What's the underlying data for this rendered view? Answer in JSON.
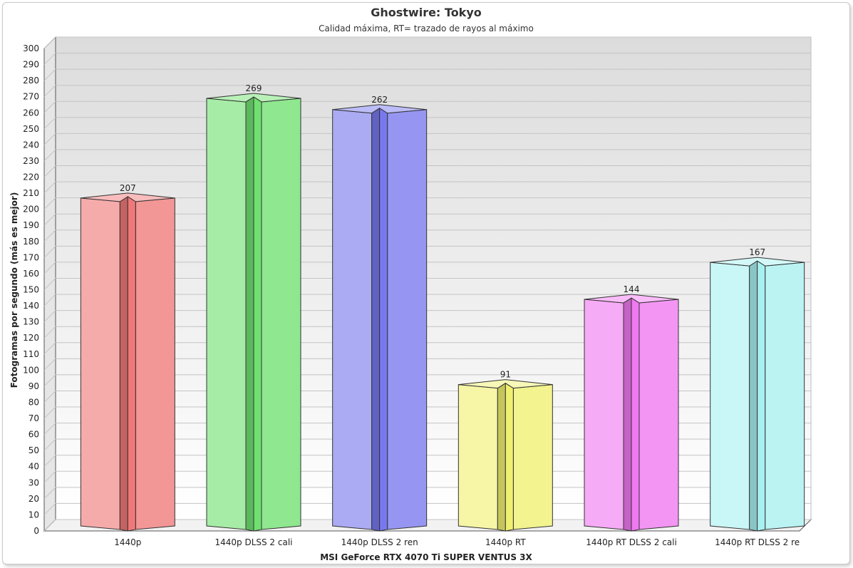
{
  "chart_data": {
    "type": "bar",
    "title": "Ghostwire: Tokyo",
    "subtitle": "Calidad máxima, RT= trazado de rayos al máximo",
    "xlabel": "MSI GeForce RTX 4070 Ti SUPER VENTUS 3X",
    "ylabel": "Fotogramas por segundo (más es mejor)",
    "ylim": [
      0,
      300
    ],
    "ytick_step": 10,
    "grid": true,
    "legend": "none",
    "categories": [
      "1440p",
      "1440p DLSS 2 cali",
      "1440p DLSS 2 ren",
      "1440p RT",
      "1440p RT DLSS 2 cali",
      "1440p RT DLSS 2 re"
    ],
    "values": [
      207,
      269,
      262,
      91,
      144,
      167
    ],
    "colors": [
      "#f07878",
      "#70e070",
      "#7878ee",
      "#f0f070",
      "#f078f0",
      "#a8f0f0"
    ]
  }
}
